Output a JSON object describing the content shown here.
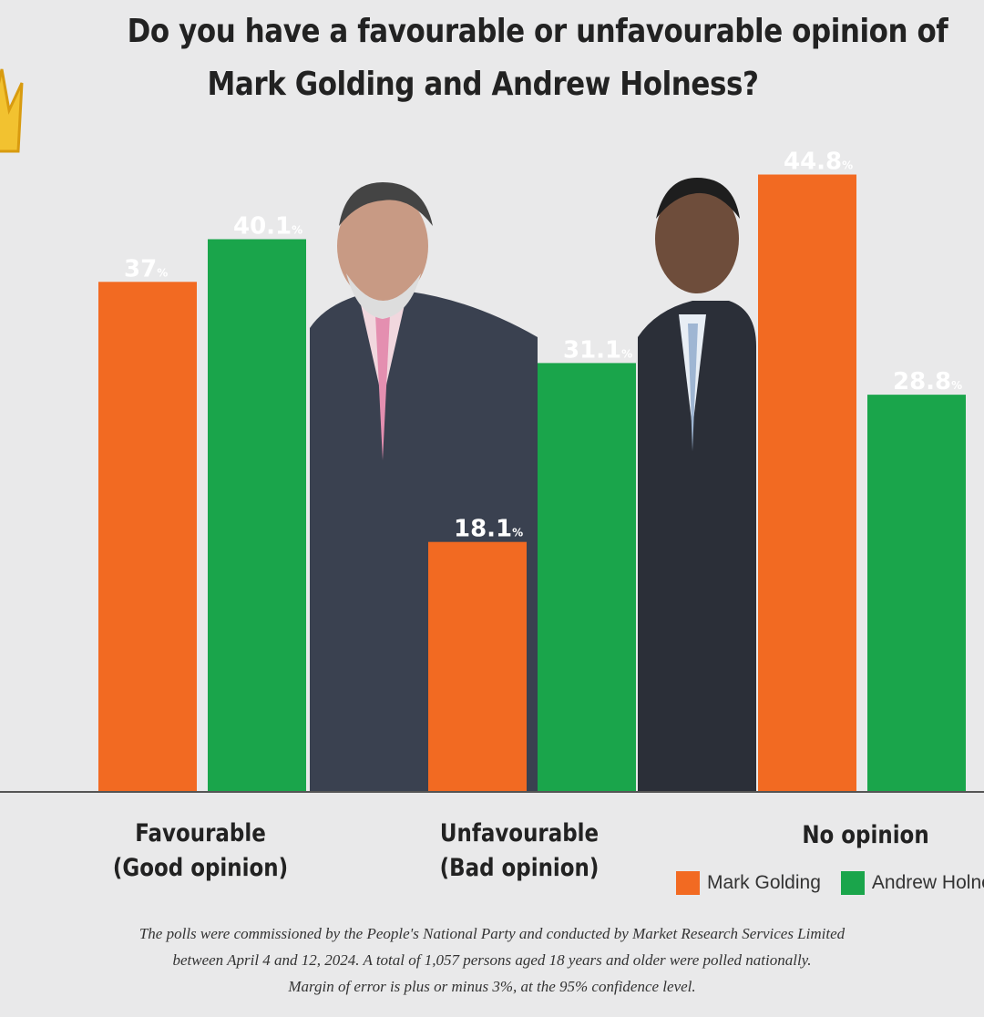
{
  "title_lines": [
    "Do you have a favourable or unfavourable opinion of",
    "Mark Golding and Andrew Holness?"
  ],
  "colors": {
    "golding": "#f26a22",
    "holness": "#1aa54b",
    "background": "#e9e9ea"
  },
  "chart_data": {
    "type": "bar",
    "title": "Do you have a favourable or unfavourable opinion of Mark Golding and Andrew Holness?",
    "categories": [
      [
        "Favourable",
        "(Good opinion)"
      ],
      [
        "Unfavourable",
        "(Bad opinion)"
      ],
      [
        "No opinion"
      ]
    ],
    "series": [
      {
        "name": "Mark Golding",
        "color": "#f26a22",
        "values": [
          37,
          18.1,
          44.8
        ],
        "labels": [
          "37",
          "18.1",
          "44.8"
        ]
      },
      {
        "name": "Andrew Holness",
        "color": "#1aa54b",
        "values": [
          40.1,
          31.1,
          28.8
        ],
        "labels": [
          "40.1",
          "31.1",
          "28.8"
        ]
      }
    ],
    "value_suffix": "%",
    "ylim": [
      0,
      50
    ],
    "grid": false,
    "legend": "bottom-right"
  },
  "legend": {
    "golding": "Mark Golding",
    "holness": "Andrew Holness"
  },
  "footnote": [
    "The polls were commissioned by the People's National Party and conducted by Market Research Services Limited",
    "between April 4 and 12, 2024. A total of 1,057 persons aged 18 years and older were polled nationally.",
    "Margin of error is plus or minus 3%, at the 95% confidence level."
  ]
}
